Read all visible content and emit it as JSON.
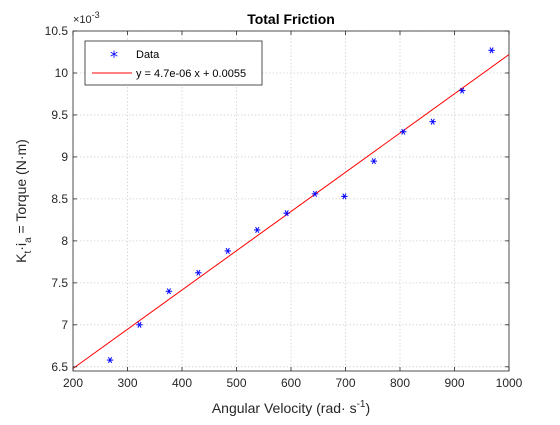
{
  "chart_data": {
    "type": "scatter",
    "title": "Total Friction",
    "xlabel": {
      "base": "Angular Velocity (rad· s",
      "sup": "-1",
      "tail": ")"
    },
    "ylabel": {
      "k": "K",
      "k_sub": "t",
      "dot_i": "·i",
      "i_sub": "a",
      "rest": " = Torque (N·m)"
    },
    "y_exponent": {
      "base": "×10",
      "power": "-3"
    },
    "xlim": [
      200,
      1000
    ],
    "ylim": [
      6.45,
      10.5
    ],
    "x_ticks": [
      200,
      300,
      400,
      500,
      600,
      700,
      800,
      900,
      1000
    ],
    "y_ticks": [
      6.5,
      7,
      7.5,
      8,
      8.5,
      9,
      9.5,
      10,
      10.5
    ],
    "x_tick_labels": [
      "200",
      "300",
      "400",
      "500",
      "600",
      "700",
      "800",
      "900",
      "1000"
    ],
    "y_tick_labels": [
      "6.5",
      "7",
      "7.5",
      "8",
      "8.5",
      "9",
      "9.5",
      "10",
      "10.5"
    ],
    "grid": true,
    "legend_position": "top-left",
    "series": [
      {
        "name": "Data",
        "kind": "scatter",
        "marker": "*",
        "color": "#0000ff",
        "x": [
          268,
          322,
          376,
          430,
          484,
          538,
          592,
          644,
          698,
          752,
          806,
          860,
          914,
          968
        ],
        "y": [
          6.58,
          7.0,
          7.4,
          7.62,
          7.88,
          8.13,
          8.33,
          8.56,
          8.53,
          8.95,
          9.3,
          9.42,
          9.79,
          10.27
        ]
      },
      {
        "name": "y = 4.7e-06 x + 0.0055",
        "kind": "line",
        "color": "#ff0000",
        "x": [
          200,
          1000
        ],
        "y": [
          6.48,
          10.22
        ]
      }
    ]
  }
}
